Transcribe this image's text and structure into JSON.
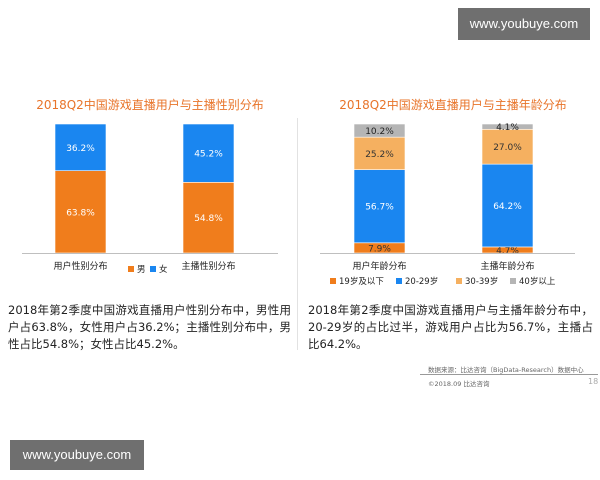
{
  "watermark": {
    "top": "www.youbuye.com",
    "bottom": "www.youbuye.com"
  },
  "colors": {
    "title": "#e8742a",
    "male": "#f07d1c",
    "female": "#1a86f0",
    "a1": "#f07d1c",
    "a2": "#1a86f0",
    "a3": "#f5b060",
    "a4": "#b5b5b5"
  },
  "chart_data": [
    {
      "type": "bar",
      "stacked": true,
      "title": "2018Q2中国游戏直播用户与主播性别分布",
      "categories": [
        "用户性别分布",
        "主播性别分布"
      ],
      "series": [
        {
          "name": "男",
          "values": [
            63.8,
            54.8
          ],
          "labels": [
            "63.8%",
            "54.8%"
          ]
        },
        {
          "name": "女",
          "values": [
            36.2,
            45.2
          ],
          "labels": [
            "36.2%",
            "45.2%"
          ]
        }
      ],
      "ylim": [
        0,
        100
      ],
      "legend": "bottom",
      "grid": false
    },
    {
      "type": "bar",
      "stacked": true,
      "title": "2018Q2中国游戏直播用户与主播年龄分布",
      "categories": [
        "用户年龄分布",
        "主播年龄分布"
      ],
      "series": [
        {
          "name": "19岁及以下",
          "values": [
            7.9,
            4.7
          ],
          "labels": [
            "7.9%",
            "4.7%"
          ]
        },
        {
          "name": "20-29岁",
          "values": [
            56.7,
            64.2
          ],
          "labels": [
            "56.7%",
            "64.2%"
          ]
        },
        {
          "name": "30-39岁",
          "values": [
            25.2,
            27.0
          ],
          "labels": [
            "25.2%",
            "27.0%"
          ]
        },
        {
          "name": "40岁以上",
          "values": [
            10.2,
            4.1
          ],
          "labels": [
            "10.2%",
            "4.1%"
          ]
        }
      ],
      "ylim": [
        0,
        100
      ],
      "legend": "bottom",
      "grid": false
    }
  ],
  "text": {
    "left_para": "2018年第2季度中国游戏直播用户性别分布中，男性用户占63.8%，女性用户占36.2%；主播性别分布中，男性占比54.8%；女性占比45.2%。",
    "right_para": "2018年第2季度中国游戏直播用户与主播年龄分布中，20-29岁的占比过半，游戏用户占比为56.7%，主播占比64.2%。",
    "source": "数据来源：比达咨询（BigData-Research）数据中心",
    "copyright": "©2018.09 比达咨询",
    "page_number": "18"
  }
}
